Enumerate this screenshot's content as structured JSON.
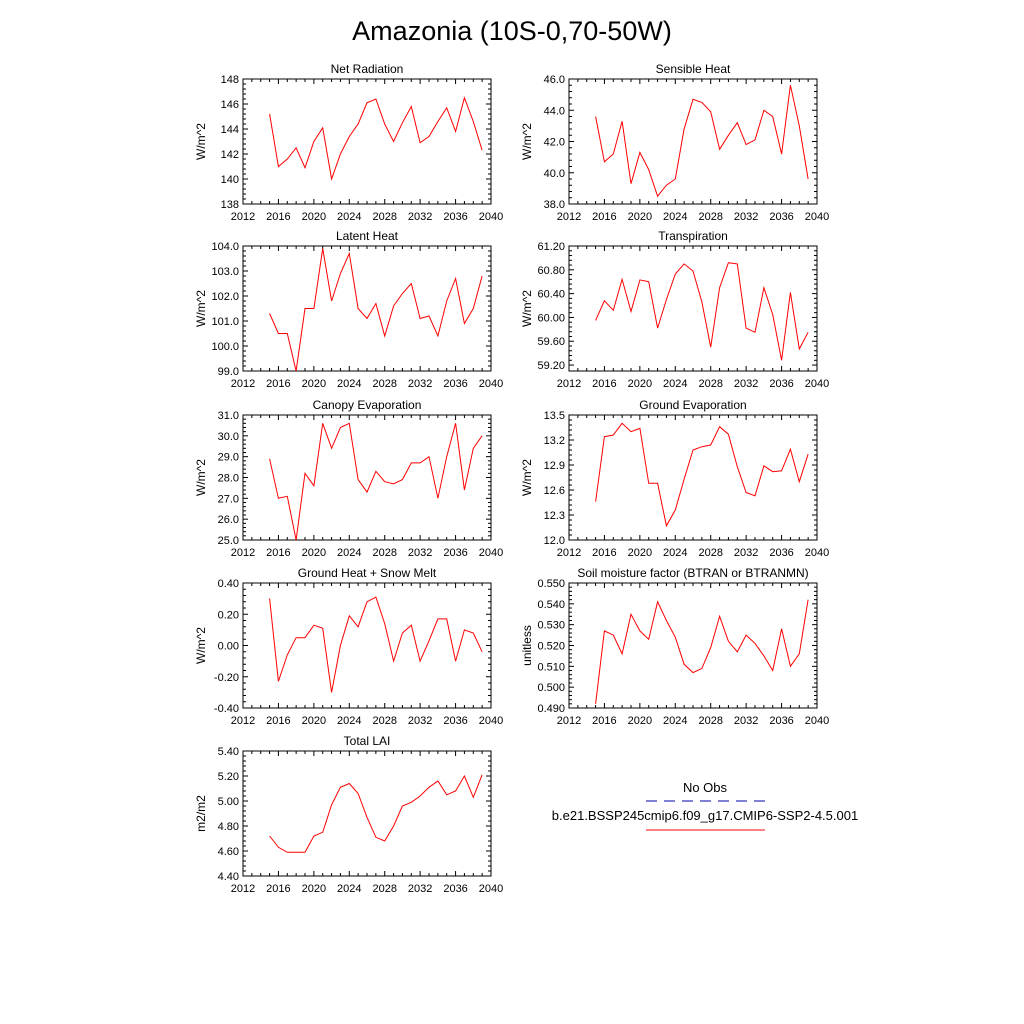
{
  "title": "Amazonia (10S-0,70-50W)",
  "colors": {
    "series": "#ff0000",
    "obs": "#0000aa",
    "axis": "#000000"
  },
  "legend": {
    "obs_label": "No Obs",
    "model_label": "b.e21.BSSP245cmip6.f09_g17.CMIP6-SSP2-4.5.001"
  },
  "chart_data": [
    {
      "type": "line",
      "title": "Net Radiation",
      "ylabel": "W/m^2",
      "xlim": [
        2012,
        2040
      ],
      "xticks": [
        "2012",
        "2016",
        "2020",
        "2024",
        "2028",
        "2032",
        "2036",
        "2040"
      ],
      "ylim": [
        138,
        148
      ],
      "yticks": [
        "138",
        "140",
        "142",
        "144",
        "146",
        "148"
      ],
      "x": [
        2015,
        2016,
        2017,
        2018,
        2019,
        2020,
        2021,
        2022,
        2023,
        2024,
        2025,
        2026,
        2027,
        2028,
        2029,
        2030,
        2031,
        2032,
        2033,
        2034,
        2035,
        2036,
        2037,
        2038,
        2039
      ],
      "values": [
        145.2,
        141.0,
        141.6,
        142.5,
        140.9,
        143.0,
        144.1,
        140.0,
        142.0,
        143.4,
        144.4,
        146.1,
        146.4,
        144.4,
        143.0,
        144.5,
        145.8,
        142.9,
        143.4,
        144.6,
        145.7,
        143.8,
        146.5,
        144.6,
        142.3
      ]
    },
    {
      "type": "line",
      "title": "Sensible Heat",
      "ylabel": "W/m^2",
      "xlim": [
        2012,
        2040
      ],
      "xticks": [
        "2012",
        "2016",
        "2020",
        "2024",
        "2028",
        "2032",
        "2036",
        "2040"
      ],
      "ylim": [
        38,
        46
      ],
      "yticks": [
        "38.0",
        "40.0",
        "42.0",
        "44.0",
        "46.0"
      ],
      "x": [
        2015,
        2016,
        2017,
        2018,
        2019,
        2020,
        2021,
        2022,
        2023,
        2024,
        2025,
        2026,
        2027,
        2028,
        2029,
        2030,
        2031,
        2032,
        2033,
        2034,
        2035,
        2036,
        2037,
        2038,
        2039
      ],
      "values": [
        43.6,
        40.7,
        41.2,
        43.3,
        39.3,
        41.3,
        40.2,
        38.5,
        39.2,
        39.6,
        42.8,
        44.7,
        44.5,
        43.9,
        41.5,
        42.4,
        43.2,
        41.8,
        42.1,
        44.0,
        43.6,
        41.2,
        45.6,
        43.0,
        39.6
      ]
    },
    {
      "type": "line",
      "title": "Latent Heat",
      "ylabel": "W/m^2",
      "xlim": [
        2012,
        2040
      ],
      "xticks": [
        "2012",
        "2016",
        "2020",
        "2024",
        "2028",
        "2032",
        "2036",
        "2040"
      ],
      "ylim": [
        99,
        104
      ],
      "yticks": [
        "99.0",
        "100.0",
        "101.0",
        "102.0",
        "103.0",
        "104.0"
      ],
      "x": [
        2015,
        2016,
        2017,
        2018,
        2019,
        2020,
        2021,
        2022,
        2023,
        2024,
        2025,
        2026,
        2027,
        2028,
        2029,
        2030,
        2031,
        2032,
        2033,
        2034,
        2035,
        2036,
        2037,
        2038,
        2039
      ],
      "values": [
        101.3,
        100.5,
        100.5,
        99.0,
        101.5,
        101.5,
        103.9,
        101.8,
        102.9,
        103.7,
        101.5,
        101.1,
        101.7,
        100.4,
        101.6,
        102.1,
        102.5,
        101.1,
        101.2,
        100.4,
        101.8,
        102.7,
        100.9,
        101.5,
        102.8
      ]
    },
    {
      "type": "line",
      "title": "Transpiration",
      "ylabel": "W/m^2",
      "xlim": [
        2012,
        2040
      ],
      "xticks": [
        "2012",
        "2016",
        "2020",
        "2024",
        "2028",
        "2032",
        "2036",
        "2040"
      ],
      "ylim": [
        59.1,
        61.2
      ],
      "yticks": [
        "59.20",
        "59.60",
        "60.00",
        "60.40",
        "60.80",
        "61.20"
      ],
      "x": [
        2015,
        2016,
        2017,
        2018,
        2019,
        2020,
        2021,
        2022,
        2023,
        2024,
        2025,
        2026,
        2027,
        2028,
        2029,
        2030,
        2031,
        2032,
        2033,
        2034,
        2035,
        2036,
        2037,
        2038,
        2039
      ],
      "values": [
        59.95,
        60.28,
        60.12,
        60.64,
        60.1,
        60.63,
        60.6,
        59.82,
        60.3,
        60.73,
        60.9,
        60.78,
        60.26,
        59.5,
        60.5,
        60.92,
        60.9,
        59.82,
        59.75,
        60.5,
        60.05,
        59.28,
        60.42,
        59.47,
        59.75
      ]
    },
    {
      "type": "line",
      "title": "Canopy Evaporation",
      "ylabel": "W/m^2",
      "xlim": [
        2012,
        2040
      ],
      "xticks": [
        "2012",
        "2016",
        "2020",
        "2024",
        "2028",
        "2032",
        "2036",
        "2040"
      ],
      "ylim": [
        25,
        31
      ],
      "yticks": [
        "25.0",
        "26.0",
        "27.0",
        "28.0",
        "29.0",
        "30.0",
        "31.0"
      ],
      "x": [
        2015,
        2016,
        2017,
        2018,
        2019,
        2020,
        2021,
        2022,
        2023,
        2024,
        2025,
        2026,
        2027,
        2028,
        2029,
        2030,
        2031,
        2032,
        2033,
        2034,
        2035,
        2036,
        2037,
        2038,
        2039
      ],
      "values": [
        28.9,
        27.0,
        27.1,
        25.0,
        28.2,
        27.6,
        30.6,
        29.4,
        30.4,
        30.6,
        27.9,
        27.3,
        28.3,
        27.8,
        27.7,
        27.9,
        28.7,
        28.7,
        29.0,
        27.0,
        29.0,
        30.6,
        27.4,
        29.4,
        30.0
      ]
    },
    {
      "type": "line",
      "title": "Ground Evaporation",
      "ylabel": "W/m^2",
      "xlim": [
        2012,
        2040
      ],
      "xticks": [
        "2012",
        "2016",
        "2020",
        "2024",
        "2028",
        "2032",
        "2036",
        "2040"
      ],
      "ylim": [
        12,
        13.5
      ],
      "yticks": [
        "12.0",
        "12.3",
        "12.6",
        "12.9",
        "13.2",
        "13.5"
      ],
      "x": [
        2015,
        2016,
        2017,
        2018,
        2019,
        2020,
        2021,
        2022,
        2023,
        2024,
        2025,
        2026,
        2027,
        2028,
        2029,
        2030,
        2031,
        2032,
        2033,
        2034,
        2035,
        2036,
        2037,
        2038,
        2039
      ],
      "values": [
        12.46,
        13.24,
        13.26,
        13.4,
        13.3,
        13.34,
        12.68,
        12.68,
        12.17,
        12.36,
        12.73,
        13.08,
        13.12,
        13.14,
        13.36,
        13.27,
        12.88,
        12.57,
        12.53,
        12.89,
        12.82,
        12.83,
        13.09,
        12.7,
        13.03
      ]
    },
    {
      "type": "line",
      "title": "Ground Heat + Snow Melt",
      "ylabel": "W/m^2",
      "xlim": [
        2012,
        2040
      ],
      "xticks": [
        "2012",
        "2016",
        "2020",
        "2024",
        "2028",
        "2032",
        "2036",
        "2040"
      ],
      "ylim": [
        -0.4,
        0.4
      ],
      "yticks": [
        "-0.40",
        "-0.20",
        "0.00",
        "0.20",
        "0.40"
      ],
      "x": [
        2015,
        2016,
        2017,
        2018,
        2019,
        2020,
        2021,
        2022,
        2023,
        2024,
        2025,
        2026,
        2027,
        2028,
        2029,
        2030,
        2031,
        2032,
        2033,
        2034,
        2035,
        2036,
        2037,
        2038,
        2039
      ],
      "values": [
        0.3,
        -0.23,
        -0.06,
        0.05,
        0.05,
        0.13,
        0.11,
        -0.3,
        0.0,
        0.19,
        0.12,
        0.28,
        0.31,
        0.14,
        -0.1,
        0.08,
        0.13,
        -0.1,
        0.03,
        0.17,
        0.17,
        -0.1,
        0.1,
        0.08,
        -0.04
      ]
    },
    {
      "type": "line",
      "title": "Soil moisture factor (BTRAN or BTRANMN)",
      "ylabel": "unitless",
      "xlim": [
        2012,
        2040
      ],
      "xticks": [
        "2012",
        "2016",
        "2020",
        "2024",
        "2028",
        "2032",
        "2036",
        "2040"
      ],
      "ylim": [
        0.49,
        0.55
      ],
      "yticks": [
        "0.490",
        "0.500",
        "0.510",
        "0.520",
        "0.530",
        "0.540",
        "0.550"
      ],
      "x": [
        2015,
        2016,
        2017,
        2018,
        2019,
        2020,
        2021,
        2022,
        2023,
        2024,
        2025,
        2026,
        2027,
        2028,
        2029,
        2030,
        2031,
        2032,
        2033,
        2034,
        2035,
        2036,
        2037,
        2038,
        2039
      ],
      "values": [
        0.492,
        0.527,
        0.525,
        0.516,
        0.535,
        0.527,
        0.523,
        0.541,
        0.532,
        0.524,
        0.511,
        0.507,
        0.509,
        0.519,
        0.534,
        0.522,
        0.517,
        0.525,
        0.521,
        0.515,
        0.508,
        0.528,
        0.51,
        0.516,
        0.542
      ]
    },
    {
      "type": "line",
      "title": "Total LAI",
      "ylabel": "m2/m2",
      "xlim": [
        2012,
        2040
      ],
      "xticks": [
        "2012",
        "2016",
        "2020",
        "2024",
        "2028",
        "2032",
        "2036",
        "2040"
      ],
      "ylim": [
        4.4,
        5.4
      ],
      "yticks": [
        "4.40",
        "4.60",
        "4.80",
        "5.00",
        "5.20",
        "5.40"
      ],
      "x": [
        2015,
        2016,
        2017,
        2018,
        2019,
        2020,
        2021,
        2022,
        2023,
        2024,
        2025,
        2026,
        2027,
        2028,
        2029,
        2030,
        2031,
        2032,
        2033,
        2034,
        2035,
        2036,
        2037,
        2038,
        2039
      ],
      "values": [
        4.72,
        4.63,
        4.59,
        4.59,
        4.59,
        4.72,
        4.75,
        4.97,
        5.11,
        5.14,
        5.06,
        4.87,
        4.71,
        4.68,
        4.8,
        4.96,
        4.99,
        5.04,
        5.11,
        5.16,
        5.05,
        5.08,
        5.2,
        5.03,
        5.21
      ]
    }
  ]
}
